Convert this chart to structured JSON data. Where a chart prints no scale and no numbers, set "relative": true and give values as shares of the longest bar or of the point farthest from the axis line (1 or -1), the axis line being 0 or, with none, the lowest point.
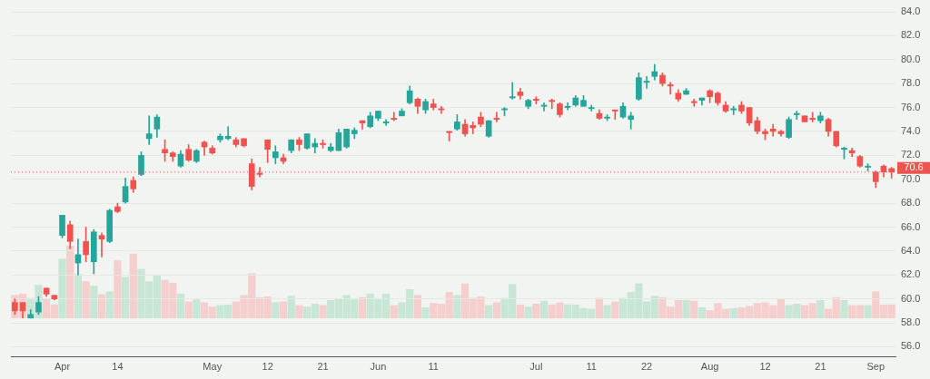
{
  "chart_data": [
    {
      "type": "candlestick",
      "categories": [
        null,
        null,
        null,
        null,
        null,
        null,
        "Apr",
        null,
        null,
        null,
        null,
        null,
        null,
        "14",
        null,
        null,
        null,
        null,
        null,
        null,
        null,
        null,
        null,
        null,
        null,
        "May",
        null,
        null,
        null,
        null,
        null,
        null,
        "12",
        null,
        null,
        null,
        null,
        null,
        null,
        "21",
        null,
        null,
        null,
        null,
        null,
        null,
        "Jun",
        null,
        null,
        null,
        null,
        null,
        null,
        "11",
        null,
        null,
        null,
        null,
        null,
        null,
        null,
        null,
        null,
        null,
        null,
        null,
        "Jul",
        null,
        null,
        null,
        null,
        null,
        null,
        "11",
        null,
        null,
        null,
        null,
        null,
        null,
        "22",
        null,
        null,
        null,
        null,
        null,
        null,
        null,
        "Aug",
        null,
        null,
        null,
        null,
        null,
        null,
        "12",
        null,
        null,
        null,
        null,
        null,
        null,
        "21",
        null,
        null,
        null,
        null,
        null,
        null,
        "Sep",
        null,
        null
      ],
      "ohlc": [
        [
          59.7,
          60.0,
          58.7,
          59.0
        ],
        [
          59.7,
          59.7,
          58.4,
          59.0
        ],
        [
          58.4,
          59.1,
          58.4,
          58.7
        ],
        [
          58.9,
          60.2,
          58.7,
          59.7
        ],
        [
          60.9,
          60.9,
          60.2,
          60.4
        ],
        [
          60.3,
          60.3,
          59.9,
          60.0
        ],
        [
          65.3,
          67.0,
          65.1,
          67.0
        ],
        [
          66.2,
          66.5,
          64.2,
          64.8
        ],
        [
          63.0,
          65.0,
          62.0,
          63.7
        ],
        [
          64.8,
          66.0,
          63.1,
          63.7
        ],
        [
          63.1,
          65.8,
          62.1,
          65.6
        ],
        [
          65.3,
          65.5,
          63.5,
          65.0
        ],
        [
          64.8,
          67.5,
          64.7,
          67.4
        ],
        [
          67.7,
          68.0,
          67.2,
          67.3
        ],
        [
          68.1,
          70.1,
          68.0,
          69.4
        ],
        [
          69.9,
          70.2,
          68.9,
          69.2
        ],
        [
          70.4,
          72.3,
          70.3,
          72.0
        ],
        [
          73.4,
          75.3,
          72.9,
          73.8
        ],
        [
          74.2,
          75.4,
          73.5,
          75.2
        ],
        [
          72.5,
          73.3,
          71.5,
          72.2
        ],
        [
          72.2,
          72.3,
          71.5,
          71.9
        ],
        [
          71.1,
          72.4,
          71.0,
          72.1
        ],
        [
          72.5,
          72.9,
          71.5,
          71.6
        ],
        [
          71.5,
          72.5,
          71.4,
          72.4
        ],
        [
          73.1,
          73.2,
          72.0,
          72.7
        ],
        [
          72.6,
          72.8,
          72.1,
          72.2
        ],
        [
          73.3,
          73.8,
          73.1,
          73.6
        ],
        [
          73.4,
          74.4,
          73.3,
          73.6
        ],
        [
          73.3,
          73.5,
          72.7,
          72.9
        ],
        [
          73.4,
          73.4,
          72.7,
          72.8
        ],
        [
          71.3,
          71.7,
          69.1,
          69.4
        ],
        [
          70.5,
          71.0,
          70.2,
          70.4
        ],
        [
          73.3,
          73.3,
          71.4,
          72.5
        ],
        [
          71.8,
          72.8,
          71.3,
          72.3
        ],
        [
          71.8,
          72.1,
          71.3,
          71.5
        ],
        [
          72.4,
          73.3,
          72.2,
          73.3
        ],
        [
          73.3,
          73.5,
          72.4,
          72.9
        ],
        [
          72.6,
          73.8,
          72.5,
          73.8
        ],
        [
          72.7,
          73.4,
          72.2,
          73.0
        ],
        [
          73.0,
          73.3,
          72.6,
          72.9
        ],
        [
          72.4,
          73.0,
          72.3,
          72.7
        ],
        [
          72.4,
          74.2,
          72.4,
          73.9
        ],
        [
          72.7,
          74.2,
          72.6,
          74.2
        ],
        [
          73.8,
          74.3,
          73.4,
          74.1
        ],
        [
          74.9,
          74.9,
          74.2,
          74.7
        ],
        [
          74.4,
          75.6,
          74.3,
          75.3
        ],
        [
          75.1,
          75.7,
          74.9,
          75.7
        ],
        [
          74.7,
          75.0,
          74.5,
          74.8
        ],
        [
          75.1,
          75.6,
          74.9,
          75.0
        ],
        [
          75.3,
          75.9,
          75.3,
          75.7
        ],
        [
          76.4,
          77.8,
          76.3,
          77.4
        ],
        [
          76.7,
          76.8,
          75.5,
          76.1
        ],
        [
          75.8,
          76.7,
          75.5,
          76.5
        ],
        [
          76.3,
          76.7,
          75.8,
          76.0
        ],
        [
          75.9,
          76.1,
          75.5,
          75.8
        ],
        [
          74.0,
          74.0,
          73.2,
          73.9
        ],
        [
          74.2,
          75.4,
          74.1,
          74.8
        ],
        [
          74.6,
          75.0,
          73.6,
          73.8
        ],
        [
          74.5,
          74.8,
          73.8,
          74.3
        ],
        [
          75.2,
          75.6,
          74.4,
          74.6
        ],
        [
          73.6,
          74.9,
          73.5,
          74.9
        ],
        [
          75.1,
          75.6,
          74.8,
          75.0
        ],
        [
          75.8,
          76.0,
          75.3,
          75.9
        ],
        [
          76.8,
          78.1,
          76.7,
          76.9
        ],
        [
          77.3,
          77.6,
          76.7,
          77.0
        ],
        [
          76.1,
          76.7,
          75.9,
          76.6
        ],
        [
          76.7,
          76.9,
          76.3,
          76.6
        ],
        [
          76.1,
          76.4,
          75.7,
          76.2
        ],
        [
          76.6,
          76.7,
          75.9,
          76.5
        ],
        [
          76.3,
          76.4,
          75.2,
          75.4
        ],
        [
          76.0,
          76.4,
          75.8,
          76.1
        ],
        [
          76.2,
          77.0,
          76.1,
          76.8
        ],
        [
          76.1,
          77.0,
          76.1,
          76.6
        ],
        [
          75.9,
          76.2,
          75.7,
          76.0
        ],
        [
          75.5,
          75.8,
          75.0,
          75.1
        ],
        [
          75.1,
          75.4,
          74.9,
          75.2
        ],
        [
          75.8,
          75.8,
          75.0,
          75.7
        ],
        [
          75.2,
          76.4,
          75.1,
          76.1
        ],
        [
          75.0,
          75.6,
          74.2,
          75.3
        ],
        [
          76.7,
          78.9,
          76.6,
          78.5
        ],
        [
          78.1,
          78.6,
          77.6,
          78.2
        ],
        [
          78.6,
          79.6,
          78.3,
          79.0
        ],
        [
          78.7,
          78.9,
          77.8,
          78.0
        ],
        [
          77.9,
          78.1,
          77.1,
          77.8
        ],
        [
          77.2,
          77.5,
          76.5,
          76.7
        ],
        [
          77.1,
          77.6,
          77.1,
          77.4
        ],
        [
          76.5,
          76.7,
          76.1,
          76.4
        ],
        [
          76.6,
          76.8,
          76.2,
          76.8
        ],
        [
          77.4,
          77.5,
          76.4,
          76.9
        ],
        [
          77.2,
          77.3,
          76.2,
          76.4
        ],
        [
          76.2,
          76.5,
          75.6,
          75.7
        ],
        [
          75.8,
          76.1,
          75.4,
          75.9
        ],
        [
          76.2,
          76.5,
          75.5,
          75.7
        ],
        [
          76.0,
          76.0,
          74.5,
          74.7
        ],
        [
          74.9,
          75.2,
          73.8,
          74.0
        ],
        [
          74.0,
          74.2,
          73.3,
          73.8
        ],
        [
          74.2,
          74.6,
          73.6,
          74.0
        ],
        [
          74.0,
          74.1,
          73.6,
          73.8
        ],
        [
          73.5,
          75.2,
          73.4,
          75.0
        ],
        [
          75.4,
          75.7,
          75.0,
          75.5
        ],
        [
          75.3,
          75.3,
          74.8,
          74.8
        ],
        [
          75.1,
          75.6,
          74.8,
          75.0
        ],
        [
          74.9,
          75.6,
          74.7,
          75.3
        ],
        [
          75.0,
          75.1,
          73.6,
          74.0
        ],
        [
          74.0,
          74.0,
          72.7,
          72.8
        ],
        [
          72.5,
          72.7,
          71.7,
          72.6
        ],
        [
          72.4,
          72.6,
          71.9,
          72.2
        ],
        [
          71.9,
          72.0,
          71.0,
          71.1
        ],
        [
          71.0,
          71.3,
          70.7,
          71.1
        ],
        [
          70.6,
          70.7,
          69.3,
          69.8
        ],
        [
          71.1,
          71.2,
          70.2,
          70.6
        ],
        [
          70.9,
          71.0,
          70.1,
          70.6
        ]
      ],
      "colors": [
        "#ef5350",
        "#ef5350",
        "#26a69a",
        "#26a69a",
        "#ef5350",
        "#ef5350",
        "#26a69a",
        "#ef5350",
        "#26a69a",
        "#ef5350",
        "#26a69a",
        "#ef5350",
        "#26a69a",
        "#ef5350",
        "#26a69a",
        "#ef5350",
        "#26a69a",
        "#26a69a",
        "#26a69a",
        "#ef5350",
        "#ef5350",
        "#26a69a",
        "#ef5350",
        "#26a69a",
        "#ef5350",
        "#ef5350",
        "#26a69a",
        "#26a69a",
        "#ef5350",
        "#ef5350",
        "#ef5350",
        "#ef5350",
        "#ef5350",
        "#26a69a",
        "#ef5350",
        "#26a69a",
        "#ef5350",
        "#26a69a",
        "#26a69a",
        "#ef5350",
        "#26a69a",
        "#26a69a",
        "#26a69a",
        "#26a69a",
        "#ef5350",
        "#26a69a",
        "#26a69a",
        "#26a69a",
        "#ef5350",
        "#26a69a",
        "#26a69a",
        "#ef5350",
        "#26a69a",
        "#ef5350",
        "#ef5350",
        "#ef5350",
        "#26a69a",
        "#ef5350",
        "#ef5350",
        "#ef5350",
        "#26a69a",
        "#ef5350",
        "#26a69a",
        "#26a69a",
        "#ef5350",
        "#26a69a",
        "#ef5350",
        "#26a69a",
        "#ef5350",
        "#ef5350",
        "#26a69a",
        "#26a69a",
        "#26a69a",
        "#26a69a",
        "#ef5350",
        "#26a69a",
        "#ef5350",
        "#26a69a",
        "#26a69a",
        "#26a69a",
        "#26a69a",
        "#26a69a",
        "#ef5350",
        "#ef5350",
        "#ef5350",
        "#26a69a",
        "#ef5350",
        "#26a69a",
        "#ef5350",
        "#ef5350",
        "#ef5350",
        "#26a69a",
        "#ef5350",
        "#ef5350",
        "#ef5350",
        "#ef5350",
        "#ef5350",
        "#ef5350",
        "#26a69a",
        "#26a69a",
        "#ef5350",
        "#ef5350",
        "#26a69a",
        "#ef5350",
        "#ef5350",
        "#26a69a",
        "#ef5350",
        "#ef5350",
        "#26a69a",
        "#ef5350",
        "#ef5350",
        "#ef5350"
      ],
      "ylim": [
        55.2,
        84
      ],
      "yticks": [
        {
          "value": 56,
          "label": "56.0"
        },
        {
          "value": 58,
          "label": "58.0"
        },
        {
          "value": 60,
          "label": "60.0"
        },
        {
          "value": 62,
          "label": "62.0"
        },
        {
          "value": 64,
          "label": "64.0"
        },
        {
          "value": 66,
          "label": "66.0"
        },
        {
          "value": 68,
          "label": "68.0"
        },
        {
          "value": 70,
          "label": "70.0"
        },
        {
          "value": 72,
          "label": "72.0"
        },
        {
          "value": 74,
          "label": "74.0"
        },
        {
          "value": 76,
          "label": "76.0"
        },
        {
          "value": 78,
          "label": "78.0"
        },
        {
          "value": 80,
          "label": "80.0"
        },
        {
          "value": 82,
          "label": "82.0"
        },
        {
          "value": 84,
          "label": "84.0"
        }
      ],
      "ref_lines": [
        {
          "axis": "y",
          "value": 70.6,
          "label": "70.6",
          "color": "#ef5350",
          "line_style": "dotted"
        }
      ],
      "grid": "y",
      "legend": false
    },
    {
      "type": "bar",
      "relative": true,
      "categories": [
        null,
        null,
        null,
        null,
        null,
        null,
        null,
        null,
        null,
        null,
        null,
        null,
        null,
        null,
        null,
        null,
        null,
        null,
        null,
        null,
        null,
        null,
        null,
        null,
        null,
        null,
        null,
        null,
        null,
        null,
        null,
        null,
        null,
        null,
        null,
        null,
        null,
        null,
        null,
        null,
        null,
        null,
        null,
        null,
        null,
        null,
        null,
        null,
        null,
        null,
        null,
        null,
        null,
        null,
        null,
        null,
        null,
        null,
        null,
        null,
        null,
        null,
        null,
        null,
        null,
        null,
        null,
        null,
        null,
        null,
        null,
        null,
        null,
        null,
        null,
        null,
        null,
        null,
        null,
        null,
        null,
        null,
        null,
        null,
        null,
        null,
        null,
        null,
        null,
        null,
        null,
        null,
        null,
        null,
        null,
        null,
        null,
        null,
        null,
        null,
        null,
        null,
        null,
        null,
        null,
        null,
        null,
        null,
        null,
        null,
        null,
        null
      ],
      "values": [
        0.32,
        0.34,
        0.28,
        0.46,
        0.27,
        0.19,
        0.82,
        1,
        0.61,
        0.51,
        0.45,
        0.33,
        0.37,
        0.8,
        0.57,
        0.89,
        0.68,
        0.51,
        0.59,
        0.53,
        0.49,
        0.34,
        0.23,
        0.26,
        0.22,
        0.16,
        0.18,
        0.19,
        0.23,
        0.32,
        0.62,
        0.29,
        0.3,
        0.22,
        0.23,
        0.31,
        0.18,
        0.16,
        0.2,
        0.18,
        0.25,
        0.27,
        0.32,
        0.26,
        0.29,
        0.34,
        0.27,
        0.34,
        0.18,
        0.22,
        0.4,
        0.32,
        0.15,
        0.21,
        0.2,
        0.36,
        0.32,
        0.48,
        0.28,
        0.3,
        0.18,
        0.22,
        0.28,
        0.47,
        0.19,
        0.16,
        0.2,
        0.24,
        0.19,
        0.22,
        0.19,
        0.19,
        0.14,
        0.13,
        0.28,
        0.18,
        0.23,
        0.28,
        0.36,
        0.48,
        0.23,
        0.31,
        0.29,
        0.16,
        0.25,
        0.25,
        0.24,
        0.15,
        0.11,
        0.21,
        0.13,
        0.14,
        0.15,
        0.17,
        0.21,
        0.22,
        0.18,
        0.27,
        0.18,
        0.2,
        0.18,
        0.21,
        0.25,
        0.13,
        0.29,
        0.25,
        0.18,
        0.18,
        0.18,
        0.37,
        0.19,
        0.19
      ],
      "colors": [
        "#f5cfcd",
        "#f5cfcd",
        "#c7e6d6",
        "#c7e6d6",
        "#f5cfcd",
        "#f5cfcd",
        "#c7e6d6",
        "#f5cfcd",
        "#c7e6d6",
        "#f5cfcd",
        "#c7e6d6",
        "#f5cfcd",
        "#c7e6d6",
        "#f5cfcd",
        "#c7e6d6",
        "#f5cfcd",
        "#c7e6d6",
        "#c7e6d6",
        "#c7e6d6",
        "#f5cfcd",
        "#f5cfcd",
        "#c7e6d6",
        "#f5cfcd",
        "#c7e6d6",
        "#f5cfcd",
        "#f5cfcd",
        "#c7e6d6",
        "#c7e6d6",
        "#f5cfcd",
        "#f5cfcd",
        "#f5cfcd",
        "#f5cfcd",
        "#f5cfcd",
        "#c7e6d6",
        "#f5cfcd",
        "#c7e6d6",
        "#f5cfcd",
        "#c7e6d6",
        "#c7e6d6",
        "#f5cfcd",
        "#c7e6d6",
        "#c7e6d6",
        "#c7e6d6",
        "#c7e6d6",
        "#f5cfcd",
        "#c7e6d6",
        "#c7e6d6",
        "#c7e6d6",
        "#f5cfcd",
        "#c7e6d6",
        "#c7e6d6",
        "#f5cfcd",
        "#c7e6d6",
        "#f5cfcd",
        "#f5cfcd",
        "#f5cfcd",
        "#c7e6d6",
        "#f5cfcd",
        "#f5cfcd",
        "#f5cfcd",
        "#c7e6d6",
        "#f5cfcd",
        "#c7e6d6",
        "#c7e6d6",
        "#f5cfcd",
        "#c7e6d6",
        "#f5cfcd",
        "#c7e6d6",
        "#f5cfcd",
        "#f5cfcd",
        "#c7e6d6",
        "#c7e6d6",
        "#c7e6d6",
        "#c7e6d6",
        "#f5cfcd",
        "#c7e6d6",
        "#f5cfcd",
        "#c7e6d6",
        "#c7e6d6",
        "#c7e6d6",
        "#c7e6d6",
        "#c7e6d6",
        "#f5cfcd",
        "#f5cfcd",
        "#f5cfcd",
        "#c7e6d6",
        "#f5cfcd",
        "#c7e6d6",
        "#f5cfcd",
        "#f5cfcd",
        "#f5cfcd",
        "#c7e6d6",
        "#f5cfcd",
        "#f5cfcd",
        "#f5cfcd",
        "#f5cfcd",
        "#f5cfcd",
        "#f5cfcd",
        "#c7e6d6",
        "#c7e6d6",
        "#f5cfcd",
        "#f5cfcd",
        "#c7e6d6",
        "#f5cfcd",
        "#f5cfcd",
        "#c7e6d6",
        "#f5cfcd",
        "#f5cfcd",
        "#c7e6d6",
        "#f5cfcd",
        "#f5cfcd",
        "#f5cfcd"
      ],
      "legend": false
    }
  ]
}
